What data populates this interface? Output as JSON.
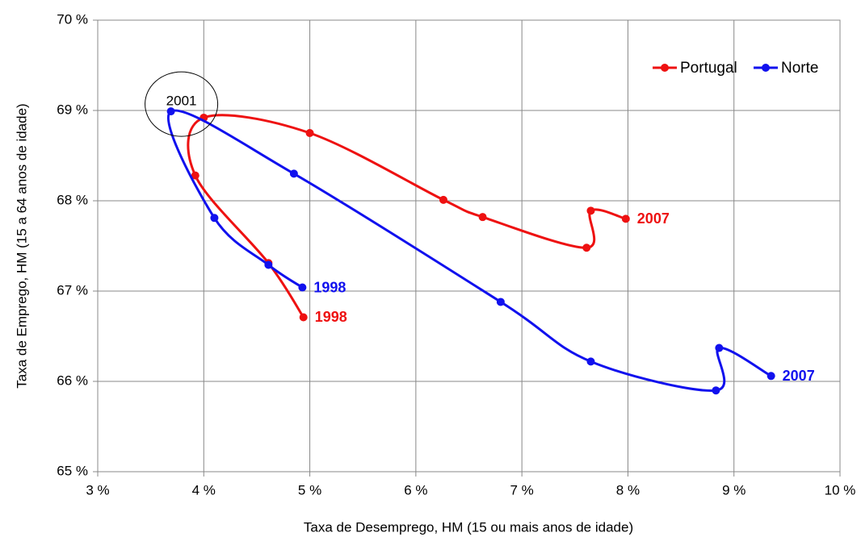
{
  "chart_data": {
    "type": "line",
    "x_label": "Taxa de Desemprego, HM (15 ou mais anos de idade)",
    "y_label": "Taxa de Emprego, HM (15 a 64 anos de idade)",
    "xlim": [
      3,
      10
    ],
    "ylim": [
      65,
      70
    ],
    "xticks": [
      {
        "value": 3,
        "label": "3 %"
      },
      {
        "value": 4,
        "label": "4 %"
      },
      {
        "value": 5,
        "label": "5 %"
      },
      {
        "value": 6,
        "label": "6 %"
      },
      {
        "value": 7,
        "label": "7 %"
      },
      {
        "value": 8,
        "label": "8 %"
      },
      {
        "value": 9,
        "label": "9 %"
      },
      {
        "value": 10,
        "label": "10 %"
      }
    ],
    "yticks": [
      {
        "value": 65,
        "label": "65 %"
      },
      {
        "value": 66,
        "label": "66 %"
      },
      {
        "value": 67,
        "label": "67 %"
      },
      {
        "value": 68,
        "label": "68 %"
      },
      {
        "value": 69,
        "label": "69 %"
      },
      {
        "value": 70,
        "label": "70 %"
      }
    ],
    "grid": true,
    "legend": "upper right",
    "series": [
      {
        "name": "Portugal",
        "color": "#ee1111",
        "start_label": "1998",
        "end_label": "2007",
        "x": [
          4.94,
          4.61,
          3.92,
          4.0,
          5.0,
          6.26,
          6.63,
          7.61,
          7.65,
          7.98
        ],
        "values": [
          66.71,
          67.31,
          68.28,
          68.92,
          68.75,
          68.01,
          67.82,
          67.48,
          67.89,
          67.8
        ]
      },
      {
        "name": "Norte",
        "color": "#1111ee",
        "start_label": "1998",
        "end_label": "2007",
        "x": [
          4.93,
          4.61,
          4.1,
          3.69,
          4.85,
          6.8,
          7.65,
          8.83,
          8.86,
          9.35
        ],
        "values": [
          67.04,
          67.29,
          67.81,
          68.99,
          68.3,
          66.88,
          66.22,
          65.9,
          66.37,
          66.06
        ]
      }
    ],
    "annotations": [
      {
        "text": "2001"
      }
    ]
  }
}
